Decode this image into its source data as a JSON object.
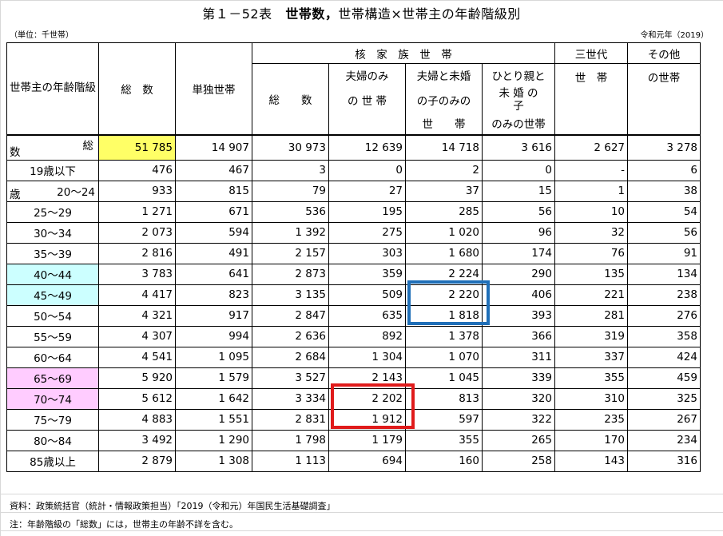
{
  "title_prefix": "第１－52表",
  "title_bold": "世帯数，",
  "title_rest": "世帯構造×世帯主の年齢階級別",
  "unit": "（単位：千世帯）",
  "era": "令和元年（2019）",
  "headers": {
    "age_group": "世帯主の年齢階級",
    "total": "総　数",
    "single": "単独世帯",
    "nuclear": "核　家　族　世　帯",
    "nuclear_total": "総　　数",
    "couple_only_1": "夫婦のみ",
    "couple_only_2": "の 世 帯",
    "couple_children_1": "夫婦と未婚",
    "couple_children_2": "の子のみの",
    "couple_children_3": "世　　帯",
    "single_parent_1": "ひとり親と",
    "single_parent_2": "未 婚 の",
    "single_parent_3": "子",
    "single_parent_4": "のみの世帯",
    "three_gen_1": "三世代",
    "three_gen_2": "世　帯",
    "other_1": "その他",
    "other_2": "の世帯"
  },
  "rows": [
    {
      "age": "総数",
      "total": "51 785",
      "single": "14 907",
      "nuc_total": "30 973",
      "couple": "12 639",
      "couple_child": "14 718",
      "single_parent": "3 616",
      "three_gen": "2 627",
      "other": "3 278"
    },
    {
      "age": "19歳以下",
      "total": "476",
      "single": "467",
      "nuc_total": "3",
      "couple": "0",
      "couple_child": "2",
      "single_parent": "0",
      "three_gen": "-",
      "other": "6"
    },
    {
      "age": "20～24歳",
      "total": "933",
      "single": "815",
      "nuc_total": "79",
      "couple": "27",
      "couple_child": "37",
      "single_parent": "15",
      "three_gen": "1",
      "other": "38"
    },
    {
      "age": "25～29",
      "total": "1 271",
      "single": "671",
      "nuc_total": "536",
      "couple": "195",
      "couple_child": "285",
      "single_parent": "56",
      "three_gen": "10",
      "other": "54"
    },
    {
      "age": "30～34",
      "total": "2 073",
      "single": "594",
      "nuc_total": "1 392",
      "couple": "275",
      "couple_child": "1 020",
      "single_parent": "96",
      "three_gen": "32",
      "other": "56"
    },
    {
      "age": "35～39",
      "total": "2 816",
      "single": "491",
      "nuc_total": "2 157",
      "couple": "303",
      "couple_child": "1 680",
      "single_parent": "174",
      "three_gen": "76",
      "other": "91"
    },
    {
      "age": "40～44",
      "total": "3 783",
      "single": "641",
      "nuc_total": "2 873",
      "couple": "359",
      "couple_child": "2 224",
      "single_parent": "290",
      "three_gen": "135",
      "other": "134"
    },
    {
      "age": "45～49",
      "total": "4 417",
      "single": "823",
      "nuc_total": "3 135",
      "couple": "509",
      "couple_child": "2 220",
      "single_parent": "406",
      "three_gen": "221",
      "other": "238"
    },
    {
      "age": "50～54",
      "total": "4 321",
      "single": "917",
      "nuc_total": "2 847",
      "couple": "635",
      "couple_child": "1 818",
      "single_parent": "393",
      "three_gen": "281",
      "other": "276"
    },
    {
      "age": "55～59",
      "total": "4 307",
      "single": "994",
      "nuc_total": "2 636",
      "couple": "892",
      "couple_child": "1 378",
      "single_parent": "366",
      "three_gen": "319",
      "other": "358"
    },
    {
      "age": "60～64",
      "total": "4 541",
      "single": "1 095",
      "nuc_total": "2 684",
      "couple": "1 304",
      "couple_child": "1 070",
      "single_parent": "311",
      "three_gen": "337",
      "other": "424"
    },
    {
      "age": "65～69",
      "total": "5 920",
      "single": "1 579",
      "nuc_total": "3 527",
      "couple": "2 143",
      "couple_child": "1 045",
      "single_parent": "339",
      "three_gen": "355",
      "other": "459"
    },
    {
      "age": "70～74",
      "total": "5 612",
      "single": "1 642",
      "nuc_total": "3 334",
      "couple": "2 202",
      "couple_child": "813",
      "single_parent": "320",
      "three_gen": "310",
      "other": "325"
    },
    {
      "age": "75～79",
      "total": "4 883",
      "single": "1 551",
      "nuc_total": "2 831",
      "couple": "1 912",
      "couple_child": "597",
      "single_parent": "322",
      "three_gen": "235",
      "other": "267"
    },
    {
      "age": "80～84",
      "total": "3 492",
      "single": "1 290",
      "nuc_total": "1 798",
      "couple": "1 179",
      "couple_child": "355",
      "single_parent": "265",
      "three_gen": "170",
      "other": "234"
    },
    {
      "age": "85歳以上",
      "total": "2 879",
      "single": "1 308",
      "nuc_total": "1 113",
      "couple": "694",
      "couple_child": "160",
      "single_parent": "258",
      "three_gen": "143",
      "other": "316"
    }
  ],
  "total_label_a": "総",
  "total_label_b": "数",
  "age2024_a": "20～24",
  "age2024_b": "歳",
  "source_note": "資料：政策統括官（統計・情報政策担当）「2019（令和元）年国民生活基礎調査」",
  "footnote": "注：年齢階級の「総数」には，世帯主の年齢不詳を含む。",
  "colors": {
    "yellow": "#ffff66",
    "cyan": "#ccffff",
    "pink": "#ffccff",
    "blue_box": "#1f6fb8",
    "red_box": "#e01b1b"
  }
}
